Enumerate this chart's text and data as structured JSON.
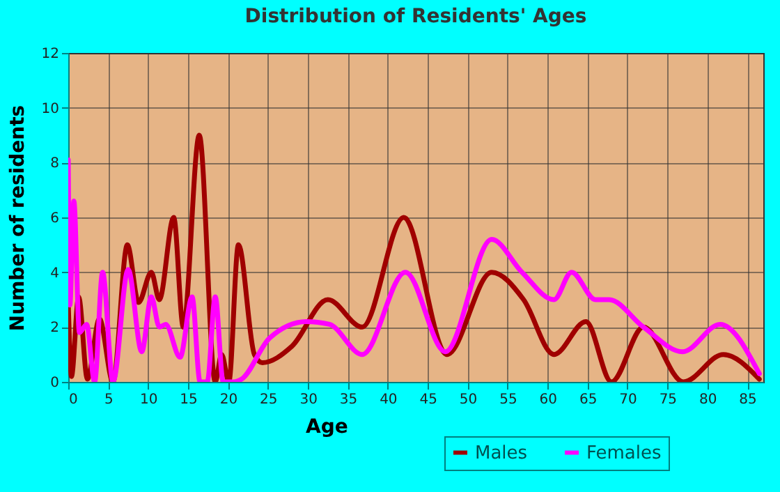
{
  "chart_data": {
    "type": "line",
    "title": "Distribution of Residents' Ages",
    "xlabel": "Age",
    "ylabel": "Number of residents",
    "xlim": [
      0,
      87
    ],
    "xticks": [
      0,
      5,
      10,
      15,
      20,
      25,
      30,
      35,
      40,
      45,
      50,
      55,
      60,
      65,
      70,
      75,
      80,
      85
    ],
    "ylim": [
      0,
      12
    ],
    "yticks": [
      0,
      2,
      4,
      6,
      8,
      10,
      12
    ],
    "grid": true,
    "legend": "bottom right",
    "marker": "none",
    "series": [
      {
        "name": "Males",
        "color": "#a00000",
        "x": [
          0,
          0.4,
          1.3,
          2.4,
          3.9,
          5.6,
          7.4,
          8.8,
          10.4,
          11.4,
          13.2,
          14.4,
          16.4,
          18.4,
          19.2,
          20.1,
          21.3,
          23.3,
          24.3,
          28,
          32.5,
          36.8,
          42,
          47.4,
          53,
          57,
          60.8,
          64.8,
          68,
          72,
          77,
          82,
          86.5
        ],
        "values": [
          2.9,
          0.2,
          3.1,
          0.1,
          2.3,
          0,
          5,
          2.9,
          4,
          3,
          6,
          2,
          9,
          0,
          1,
          0,
          5,
          1,
          0.7,
          1.3,
          3,
          2,
          6,
          1,
          4,
          3,
          1,
          2.2,
          0,
          2,
          0,
          1,
          0.1
        ]
      },
      {
        "name": "Females",
        "color": "#ff00ff",
        "x": [
          0,
          0.2,
          0.7,
          1.4,
          2.3,
          3.3,
          4.3,
          5.6,
          7.5,
          9.2,
          10.4,
          11.4,
          12.2,
          14,
          15.5,
          16.5,
          17.4,
          18.4,
          19.4,
          20.7,
          21.7,
          25.2,
          29.8,
          32.7,
          36.8,
          42.2,
          47.2,
          53,
          56.8,
          60.8,
          63,
          66,
          67.7,
          72,
          76.9,
          81.6,
          86.5
        ],
        "values": [
          8.1,
          2.8,
          6.6,
          1.8,
          2.1,
          0,
          4,
          0,
          4.1,
          1.1,
          3.1,
          2,
          2.1,
          0.9,
          3.1,
          0,
          0,
          3.1,
          0,
          0,
          0.1,
          1.6,
          2.2,
          2.1,
          1,
          4,
          1.1,
          5.2,
          4,
          3,
          4,
          3,
          3,
          2,
          1.1,
          2.1,
          0.3
        ]
      }
    ]
  }
}
